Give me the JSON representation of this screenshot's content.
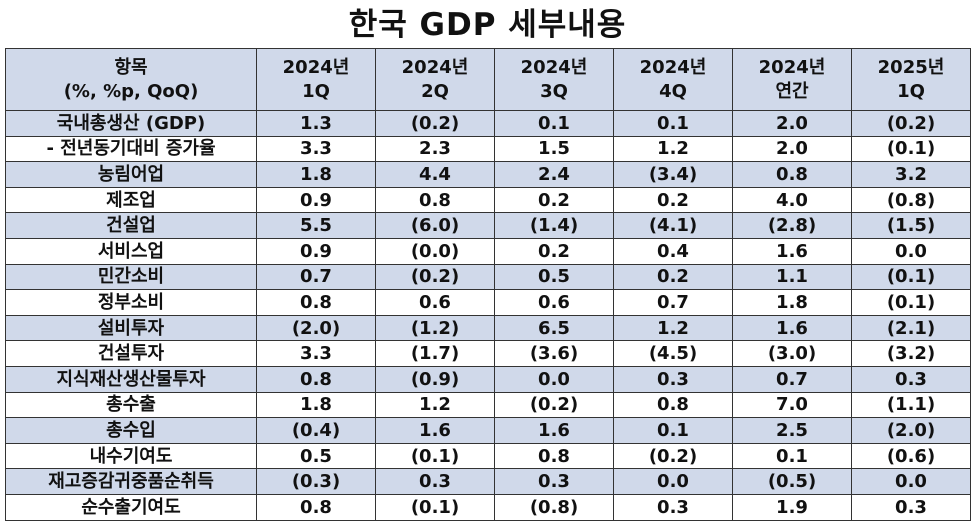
{
  "title": "한국 GDP 세부내용",
  "header": {
    "item": [
      "항목",
      "(%, %p, QoQ)"
    ],
    "columns": [
      [
        "2024년",
        "1Q"
      ],
      [
        "2024년",
        "2Q"
      ],
      [
        "2024년",
        "3Q"
      ],
      [
        "2024년",
        "4Q"
      ],
      [
        "2024년",
        "연간"
      ],
      [
        "2025년",
        "1Q"
      ]
    ]
  },
  "rows": [
    {
      "label": "국내총생산 (GDP)",
      "values": [
        "1.3",
        "(0.2)",
        "0.1",
        "0.1",
        "2.0",
        "(0.2)"
      ]
    },
    {
      "label": "- 전년동기대비 증가율",
      "values": [
        "3.3",
        "2.3",
        "1.5",
        "1.2",
        "2.0",
        "(0.1)"
      ]
    },
    {
      "label": "농림어업",
      "values": [
        "1.8",
        "4.4",
        "2.4",
        "(3.4)",
        "0.8",
        "3.2"
      ]
    },
    {
      "label": "제조업",
      "values": [
        "0.9",
        "0.8",
        "0.2",
        "0.2",
        "4.0",
        "(0.8)"
      ]
    },
    {
      "label": "건설업",
      "values": [
        "5.5",
        "(6.0)",
        "(1.4)",
        "(4.1)",
        "(2.8)",
        "(1.5)"
      ]
    },
    {
      "label": "서비스업",
      "values": [
        "0.9",
        "(0.0)",
        "0.2",
        "0.4",
        "1.6",
        "0.0"
      ]
    },
    {
      "label": "민간소비",
      "values": [
        "0.7",
        "(0.2)",
        "0.5",
        "0.2",
        "1.1",
        "(0.1)"
      ]
    },
    {
      "label": "정부소비",
      "values": [
        "0.8",
        "0.6",
        "0.6",
        "0.7",
        "1.8",
        "(0.1)"
      ]
    },
    {
      "label": "설비투자",
      "values": [
        "(2.0)",
        "(1.2)",
        "6.5",
        "1.2",
        "1.6",
        "(2.1)"
      ]
    },
    {
      "label": "건설투자",
      "values": [
        "3.3",
        "(1.7)",
        "(3.6)",
        "(4.5)",
        "(3.0)",
        "(3.2)"
      ]
    },
    {
      "label": "지식재산생산물투자",
      "values": [
        "0.8",
        "(0.9)",
        "0.0",
        "0.3",
        "0.7",
        "0.3"
      ]
    },
    {
      "label": "총수출",
      "values": [
        "1.8",
        "1.2",
        "(0.2)",
        "0.8",
        "7.0",
        "(1.1)"
      ]
    },
    {
      "label": "총수입",
      "values": [
        "(0.4)",
        "1.6",
        "1.6",
        "0.1",
        "2.5",
        "(2.0)"
      ]
    },
    {
      "label": "내수기여도",
      "values": [
        "0.5",
        "(0.1)",
        "0.8",
        "(0.2)",
        "0.1",
        "(0.6)"
      ]
    },
    {
      "label": "재고증감귀중품순취득",
      "values": [
        "(0.3)",
        "0.3",
        "0.3",
        "0.0",
        "(0.5)",
        "0.0"
      ]
    },
    {
      "label": "순수출기여도",
      "values": [
        "0.8",
        "(0.1)",
        "(0.8)",
        "0.3",
        "1.9",
        "0.3"
      ]
    }
  ]
}
